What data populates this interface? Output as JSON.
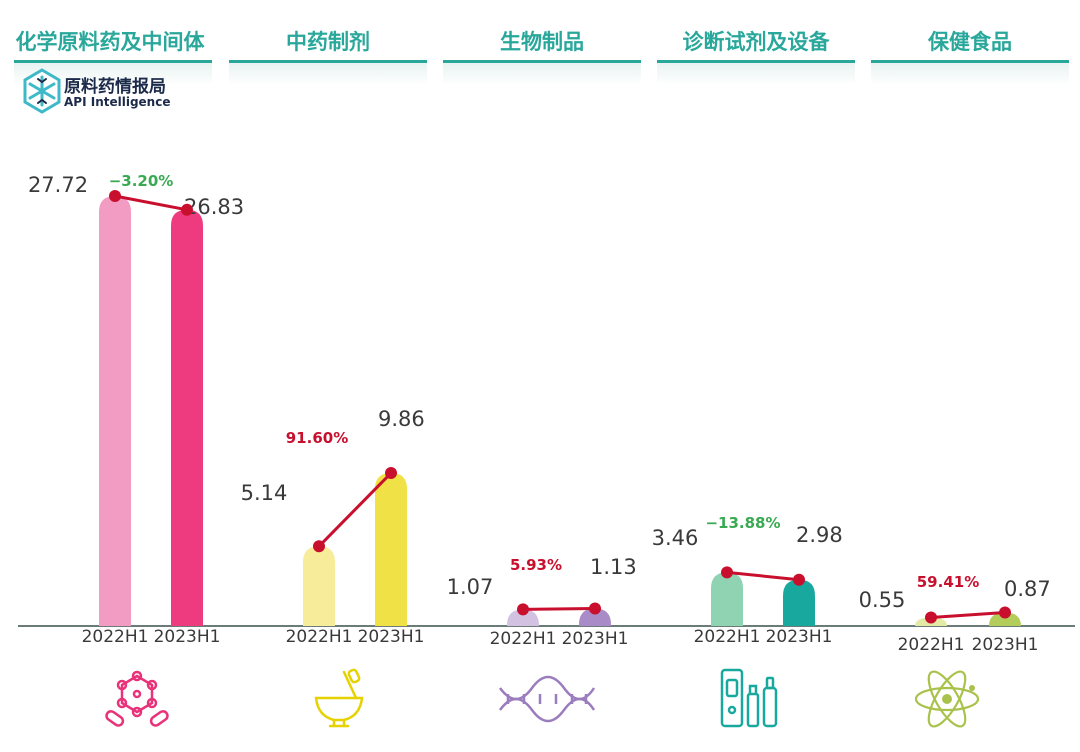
{
  "colors": {
    "teal": "#2aa79b",
    "growth_red": "#c8102e",
    "decline_green": "#3aaa52",
    "axis": "#6b7b78"
  },
  "chart_data": {
    "type": "bar",
    "title": "",
    "xlabel": "",
    "ylabel": "",
    "ylim": [
      0,
      27.72
    ],
    "legend": "none",
    "grid": false,
    "groups": [
      {
        "name": "化学原料药及中间体",
        "icon": "molecule-icon",
        "categories": [
          "2022H1",
          "2023H1"
        ],
        "values": [
          27.72,
          26.83
        ],
        "value_labels": [
          "27.72",
          "26.83"
        ],
        "colors": [
          "#f29bc3",
          "#ee3a7f"
        ],
        "change": "−3.20%",
        "change_color": "#3aaa52"
      },
      {
        "name": "中药制剂",
        "icon": "mortar-pestle-icon",
        "categories": [
          "2022H1",
          "2023H1"
        ],
        "values": [
          5.14,
          9.86
        ],
        "value_labels": [
          "5.14",
          "9.86"
        ],
        "colors": [
          "#f6ec9a",
          "#f0e246"
        ],
        "change": "91.60%",
        "change_color": "#c8102e"
      },
      {
        "name": "生物制品",
        "icon": "dna-icon",
        "categories": [
          "2022H1",
          "2023H1"
        ],
        "values": [
          1.07,
          1.13
        ],
        "value_labels": [
          "1.07",
          "1.13"
        ],
        "colors": [
          "#d3c1e2",
          "#a98cc7"
        ],
        "change": "5.93%",
        "change_color": "#c8102e"
      },
      {
        "name": "诊断试剂及设备",
        "icon": "test-kit-icon",
        "categories": [
          "2022H1",
          "2023H1"
        ],
        "values": [
          3.46,
          2.98
        ],
        "value_labels": [
          "3.46",
          "2.98"
        ],
        "colors": [
          "#8fd3b2",
          "#19a89e"
        ],
        "change": "−13.88%",
        "change_color": "#3aaa52"
      },
      {
        "name": "保健食品",
        "icon": "atom-icon",
        "categories": [
          "2022H1",
          "2023H1"
        ],
        "values": [
          0.55,
          0.87
        ],
        "value_labels": [
          "0.55",
          "0.87"
        ],
        "colors": [
          "#e2eaa6",
          "#b3cc5a"
        ],
        "change": "59.41%",
        "change_color": "#c8102e"
      }
    ]
  },
  "logo": {
    "name_cn": "原料药情报局",
    "name_en": "API Intelligence"
  }
}
